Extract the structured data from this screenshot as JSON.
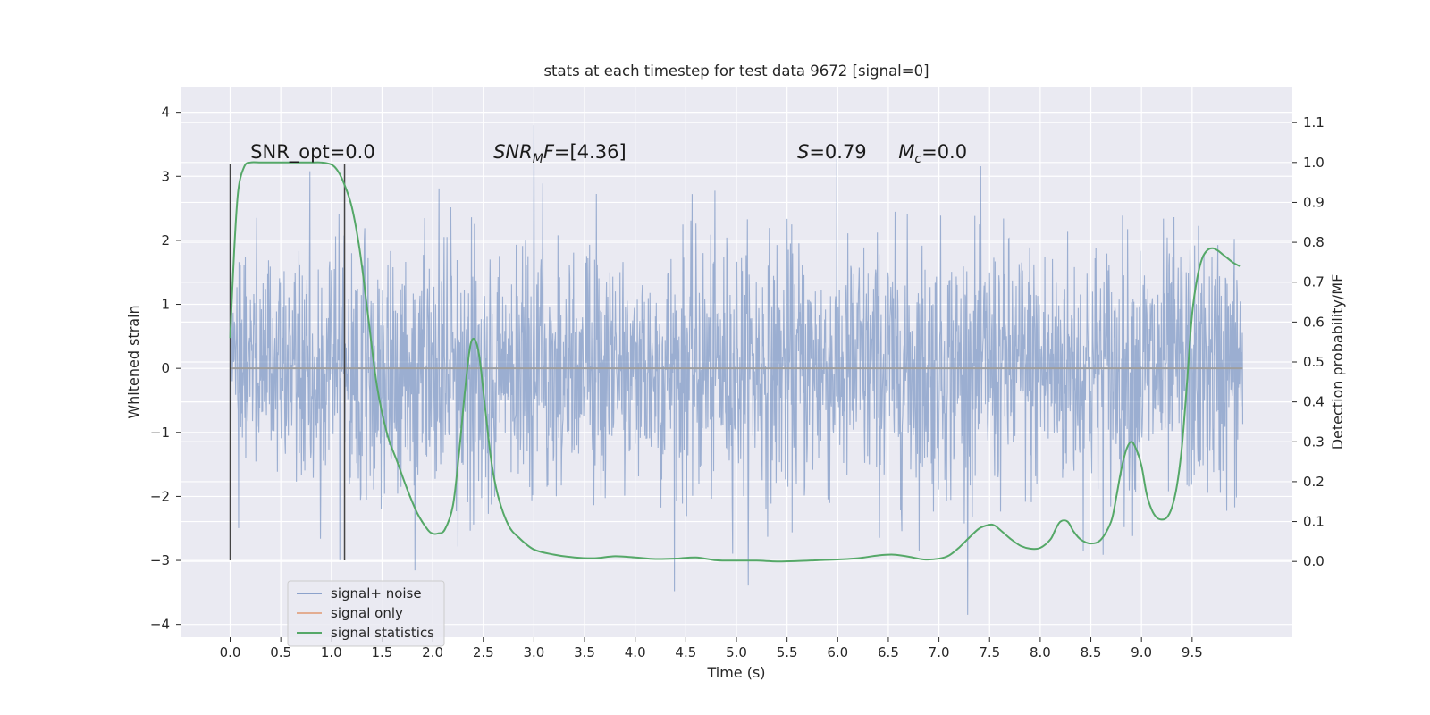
{
  "chart_data": {
    "type": "line",
    "title": "stats at each timestep for test data 9672 [signal=0]",
    "xlabel": "Time (s)",
    "ylabel": "Whitened strain",
    "y2label": "Detection probability/MF",
    "xlim": [
      -0.49,
      10.49
    ],
    "ylim": [
      -4.2,
      4.4
    ],
    "y2lim": [
      -0.19,
      1.19
    ],
    "x_ticks": [
      0.0,
      0.5,
      1.0,
      1.5,
      2.0,
      2.5,
      3.0,
      3.5,
      4.0,
      4.5,
      5.0,
      5.5,
      6.0,
      6.5,
      7.0,
      7.5,
      8.0,
      8.5,
      9.0,
      9.5
    ],
    "x_tick_labels": [
      "0.0",
      "0.5",
      "1.0",
      "1.5",
      "2.0",
      "2.5",
      "3.0",
      "3.5",
      "4.0",
      "4.5",
      "5.0",
      "5.5",
      "6.0",
      "6.5",
      "7.0",
      "7.5",
      "8.0",
      "8.5",
      "9.0",
      "9.5"
    ],
    "y_ticks": [
      4,
      3,
      2,
      1,
      0,
      -1,
      -2,
      -3,
      -4
    ],
    "y_tick_labels": [
      "4",
      "3",
      "2",
      "1",
      "0",
      "−1",
      "−2",
      "−3",
      "−4"
    ],
    "y2_ticks": [
      1.1,
      1.0,
      0.9,
      0.8,
      0.7,
      0.6,
      0.5,
      0.4,
      0.3,
      0.2,
      0.1,
      0.0
    ],
    "y2_tick_labels": [
      "1.1",
      "1.0",
      "0.9",
      "0.8",
      "0.7",
      "0.6",
      "0.5",
      "0.4",
      "0.3",
      "0.2",
      "0.1",
      "0.0"
    ],
    "grid": true,
    "legend_position": "bottom-left",
    "series": [
      {
        "name": "signal+ noise",
        "axis": "left",
        "color": "#4c72b0",
        "t_range": [
          0.0,
          10.0
        ],
        "typical_amplitude": 1.0,
        "min": -3.85,
        "max": 4.05
      },
      {
        "name": "signal only",
        "axis": "left",
        "color": "#dd8452",
        "t_range": [
          0.0,
          10.0
        ],
        "constant": 0.0
      },
      {
        "name": "signal statistics",
        "axis": "right",
        "color": "#55a868",
        "x": [
          0.0,
          0.04,
          0.08,
          0.14,
          0.2,
          0.3,
          0.4,
          0.5,
          0.6,
          0.7,
          0.8,
          0.9,
          1.0,
          1.06,
          1.12,
          1.2,
          1.28,
          1.36,
          1.45,
          1.55,
          1.65,
          1.75,
          1.85,
          1.95,
          2.0,
          2.05,
          2.12,
          2.2,
          2.26,
          2.32,
          2.38,
          2.45,
          2.52,
          2.58,
          2.65,
          2.75,
          2.85,
          3.0,
          3.2,
          3.4,
          3.6,
          3.8,
          4.0,
          4.2,
          4.4,
          4.6,
          4.8,
          5.0,
          5.2,
          5.4,
          5.6,
          5.8,
          6.0,
          6.2,
          6.4,
          6.55,
          6.7,
          6.85,
          7.0,
          7.1,
          7.2,
          7.3,
          7.4,
          7.5,
          7.55,
          7.6,
          7.7,
          7.8,
          7.9,
          8.0,
          8.1,
          8.15,
          8.2,
          8.27,
          8.33,
          8.4,
          8.5,
          8.6,
          8.7,
          8.75,
          8.8,
          8.85,
          8.9,
          8.95,
          9.0,
          9.05,
          9.1,
          9.15,
          9.2,
          9.25,
          9.3,
          9.35,
          9.4,
          9.45,
          9.5,
          9.55,
          9.6,
          9.65,
          9.7,
          9.75,
          9.8,
          9.85,
          9.9,
          9.97
        ],
        "values": [
          0.56,
          0.78,
          0.93,
          0.99,
          1.0,
          1.0,
          1.0,
          1.0,
          1.0,
          1.0,
          1.0,
          1.0,
          0.995,
          0.98,
          0.95,
          0.89,
          0.78,
          0.62,
          0.44,
          0.32,
          0.25,
          0.18,
          0.12,
          0.08,
          0.07,
          0.07,
          0.08,
          0.14,
          0.27,
          0.43,
          0.55,
          0.53,
          0.38,
          0.25,
          0.16,
          0.09,
          0.06,
          0.03,
          0.017,
          0.01,
          0.008,
          0.013,
          0.01,
          0.006,
          0.007,
          0.01,
          0.003,
          0.002,
          0.002,
          0.0,
          0.001,
          0.003,
          0.005,
          0.008,
          0.015,
          0.017,
          0.012,
          0.005,
          0.007,
          0.015,
          0.035,
          0.06,
          0.083,
          0.092,
          0.09,
          0.08,
          0.058,
          0.04,
          0.032,
          0.034,
          0.055,
          0.08,
          0.1,
          0.1,
          0.075,
          0.055,
          0.045,
          0.055,
          0.1,
          0.16,
          0.23,
          0.28,
          0.3,
          0.28,
          0.24,
          0.17,
          0.13,
          0.11,
          0.105,
          0.11,
          0.135,
          0.19,
          0.29,
          0.45,
          0.62,
          0.71,
          0.76,
          0.78,
          0.785,
          0.78,
          0.77,
          0.76,
          0.75,
          0.74
        ]
      }
    ],
    "vertical_lines": [
      {
        "x": 0.0,
        "y_range": [
          -3.0,
          3.2
        ],
        "color": "#444444"
      },
      {
        "x": 1.13,
        "y_range": [
          -3.0,
          3.2
        ],
        "color": "#444444"
      }
    ],
    "annotations": [
      {
        "x": 0.2,
        "y": 3.2,
        "text": "SNR_opt=0.0"
      },
      {
        "x": 2.6,
        "y": 3.2,
        "text_italic_part": "SNR",
        "text_sub": "M",
        "text_italic_part2": "F",
        "text_rest": "=[4.36]"
      },
      {
        "x": 5.6,
        "y": 3.2,
        "text_italic_part": "S",
        "text_rest": "=0.79"
      },
      {
        "x": 6.6,
        "y": 3.2,
        "text_italic_part": "M",
        "text_sub": "c",
        "text_rest": "=0.0"
      }
    ]
  },
  "legend": {
    "items": [
      {
        "label": "signal+ noise",
        "color": "#4c72b0"
      },
      {
        "label": "signal only",
        "color": "#dd8452"
      },
      {
        "label": "signal statistics",
        "color": "#55a868"
      }
    ]
  },
  "colors": {
    "plot_background": "#eaeaf2",
    "grid": "#ffffff",
    "text": "#262626"
  }
}
